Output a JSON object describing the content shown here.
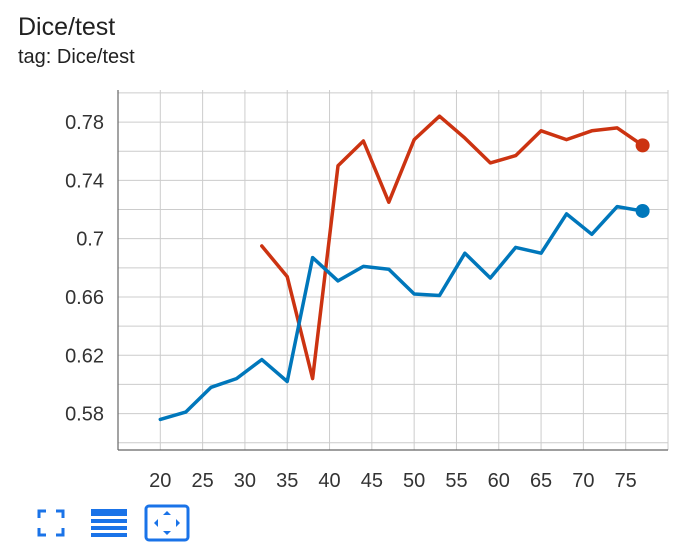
{
  "card": {
    "title": "Dice/test",
    "tag": "tag: Dice/test"
  },
  "toolbar": {
    "buttons": [
      {
        "icon": "fullscreen-icon"
      },
      {
        "icon": "data-table-icon"
      },
      {
        "icon": "fit-domain-icon"
      }
    ]
  },
  "colors": {
    "series_red": "#cc3311",
    "series_blue": "#0077bb",
    "grid": "#cccccc",
    "axis": "#666666",
    "accent": "#1a73e8"
  },
  "chart_data": {
    "type": "line",
    "title": "Dice/test",
    "subtitle": "tag: Dice/test",
    "xlabel": "",
    "ylabel": "",
    "xlim": [
      15,
      80
    ],
    "ylim": [
      0.555,
      0.802
    ],
    "x_ticks": [
      20,
      25,
      30,
      35,
      40,
      45,
      50,
      55,
      60,
      65,
      70,
      75
    ],
    "y_ticks": [
      0.58,
      0.62,
      0.66,
      0.7,
      0.74,
      0.78
    ],
    "y_tick_labels": [
      "0.58",
      "0.62",
      "0.66",
      "0.7",
      "0.74",
      "0.78"
    ],
    "grid": true,
    "series": [
      {
        "color": "#cc3311",
        "x": [
          32,
          35,
          38,
          41,
          44,
          47,
          50,
          53,
          56,
          59,
          62,
          65,
          68,
          71,
          74,
          77
        ],
        "y": [
          0.695,
          0.674,
          0.604,
          0.75,
          0.767,
          0.725,
          0.768,
          0.784,
          0.769,
          0.752,
          0.757,
          0.774,
          0.768,
          0.774,
          0.776,
          0.764
        ]
      },
      {
        "color": "#0077bb",
        "x": [
          20,
          23,
          26,
          29,
          32,
          35,
          38,
          41,
          44,
          47,
          50,
          53,
          56,
          59,
          62,
          65,
          68,
          71,
          74,
          77
        ],
        "y": [
          0.576,
          0.581,
          0.598,
          0.604,
          0.617,
          0.602,
          0.687,
          0.671,
          0.681,
          0.679,
          0.662,
          0.661,
          0.69,
          0.673,
          0.694,
          0.69,
          0.717,
          0.703,
          0.722,
          0.719
        ]
      }
    ]
  }
}
